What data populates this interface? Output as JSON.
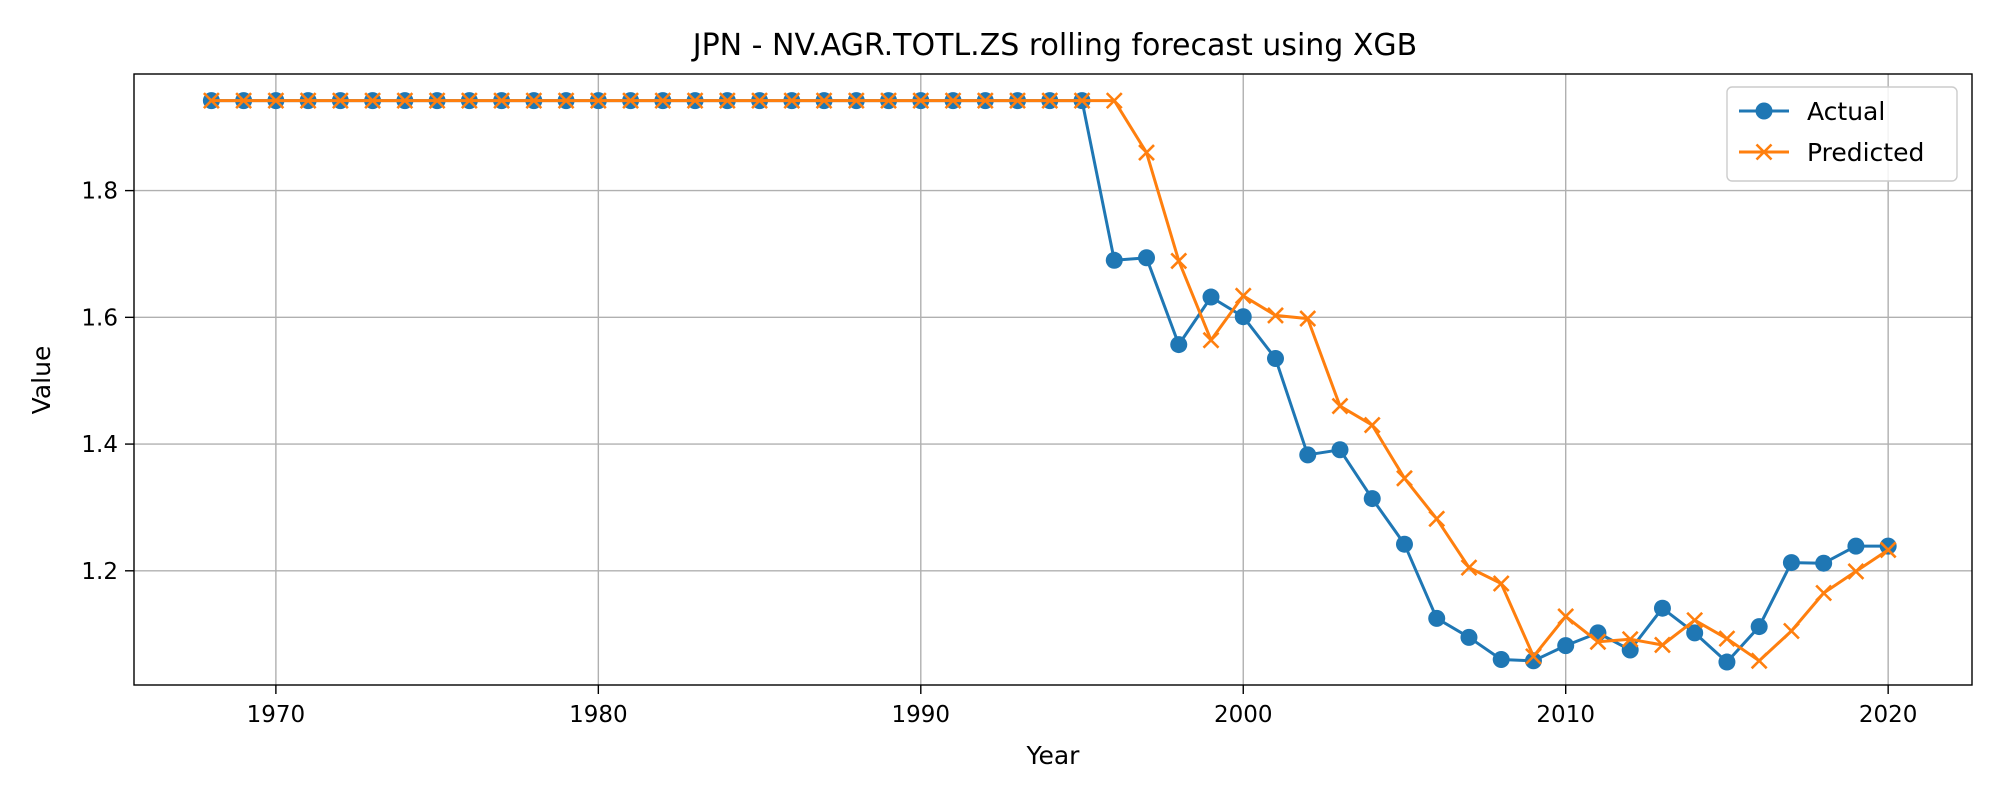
{
  "chart_data": {
    "type": "line",
    "title": "JPN - NV.AGR.TOTL.ZS rolling forecast using XGB",
    "xlabel": "Year",
    "ylabel": "Value",
    "xlim": [
      1965.6,
      2022.6
    ],
    "ylim": [
      1.0198,
      1.984
    ],
    "xticks": [
      1970,
      1980,
      1990,
      2000,
      2010,
      2020
    ],
    "yticks": [
      1.2,
      1.4,
      1.6,
      1.8
    ],
    "grid": true,
    "legend_position": "top-right",
    "x": [
      1968,
      1969,
      1970,
      1971,
      1972,
      1973,
      1974,
      1975,
      1976,
      1977,
      1978,
      1979,
      1980,
      1981,
      1982,
      1983,
      1984,
      1985,
      1986,
      1987,
      1988,
      1989,
      1990,
      1991,
      1992,
      1993,
      1994,
      1995,
      1996,
      1997,
      1998,
      1999,
      2000,
      2001,
      2002,
      2003,
      2004,
      2005,
      2006,
      2007,
      2008,
      2009,
      2010,
      2011,
      2012,
      2013,
      2014,
      2015,
      2016,
      2017,
      2018,
      2019,
      2020
    ],
    "series": [
      {
        "name": "Actual",
        "color": "#1f77b4",
        "marker": "circle",
        "values": [
          1.942,
          1.942,
          1.942,
          1.942,
          1.942,
          1.942,
          1.942,
          1.942,
          1.942,
          1.942,
          1.942,
          1.942,
          1.942,
          1.942,
          1.942,
          1.942,
          1.942,
          1.942,
          1.942,
          1.942,
          1.942,
          1.942,
          1.942,
          1.942,
          1.942,
          1.942,
          1.942,
          1.942,
          1.69,
          1.694,
          1.557,
          1.632,
          1.601,
          1.535,
          1.383,
          1.391,
          1.314,
          1.242,
          1.125,
          1.095,
          1.06,
          1.058,
          1.082,
          1.102,
          1.075,
          1.141,
          1.102,
          1.056,
          1.112,
          1.213,
          1.212,
          1.239,
          1.239
        ]
      },
      {
        "name": "Predicted",
        "color": "#ff7f0e",
        "marker": "x",
        "values": [
          1.942,
          1.942,
          1.942,
          1.942,
          1.942,
          1.942,
          1.942,
          1.942,
          1.942,
          1.942,
          1.942,
          1.942,
          1.942,
          1.942,
          1.942,
          1.942,
          1.942,
          1.942,
          1.942,
          1.942,
          1.942,
          1.942,
          1.942,
          1.942,
          1.942,
          1.942,
          1.942,
          1.942,
          1.942,
          1.86,
          1.689,
          1.564,
          1.634,
          1.603,
          1.598,
          1.46,
          1.43,
          1.346,
          1.282,
          1.205,
          1.18,
          1.065,
          1.128,
          1.088,
          1.092,
          1.083,
          1.122,
          1.093,
          1.058,
          1.105,
          1.165,
          1.199,
          1.233
        ]
      }
    ]
  }
}
